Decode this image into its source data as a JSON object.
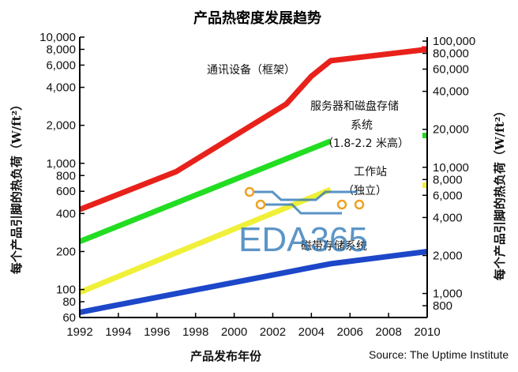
{
  "chart_data": {
    "type": "line",
    "title": "产品热密度发展趋势",
    "xlabel": "产品发布年份",
    "ylabel_left": "每个产品引脚的热负荷（W/ft²）",
    "ylabel_right": "每个产品引脚的热负荷（W/ft²）",
    "y_scale": "log",
    "xlim": [
      1992,
      2010
    ],
    "ylim_left": [
      60,
      10000
    ],
    "ylim_right": [
      645,
      107600
    ],
    "x_ticks": [
      "1992",
      "1994",
      "1996",
      "1998",
      "2000",
      "2002",
      "2004",
      "2006",
      "2008",
      "2010"
    ],
    "y_ticks_left": [
      "10,000",
      "8,000",
      "6,000",
      "4,000",
      "2,000",
      "1,000",
      "800",
      "600",
      "400",
      "200",
      "100",
      "80",
      "60"
    ],
    "y_ticks_right": [
      "100,000",
      "80,000",
      "60,000",
      "40,000",
      "20,000",
      "10,000",
      "8,000",
      "6,000",
      "4,000",
      "2,000",
      "1,000",
      "800"
    ],
    "series": [
      {
        "name": "通讯设备（框架）",
        "color": "#e8211b",
        "x": [
          1992,
          1997,
          2002.7,
          2004,
          2005,
          2010
        ],
        "y": [
          430,
          860,
          2950,
          4900,
          6500,
          8000
        ]
      },
      {
        "name": "服务器和磁盘存储系统（1.8-2.2 米高）",
        "color": "#22dd22",
        "x": [
          1992,
          2005
        ],
        "y": [
          240,
          1500
        ]
      },
      {
        "name": "工作站（独立）",
        "color": "#f0f03a",
        "x": [
          1992,
          2005
        ],
        "y": [
          95,
          620
        ]
      },
      {
        "name": "磁带存储系统",
        "color": "#1d47c9",
        "x": [
          1992,
          2005,
          2010
        ],
        "y": [
          66,
          160,
          200
        ]
      }
    ],
    "annotations": [
      {
        "text": "通讯设备（框架）"
      },
      {
        "text": "服务器和磁盘存储"
      },
      {
        "text": "系统"
      },
      {
        "text": "（1.8-2.2 米高）"
      },
      {
        "text": "工作站"
      },
      {
        "text": "（独立）"
      },
      {
        "text": "磁带存储系统"
      }
    ],
    "grid": false,
    "legend": "none"
  },
  "source": "Source: The Uptime Institute",
  "watermark": "EDA365",
  "colors": {
    "circuit": "#2f78b7",
    "node": "#f0a020"
  }
}
